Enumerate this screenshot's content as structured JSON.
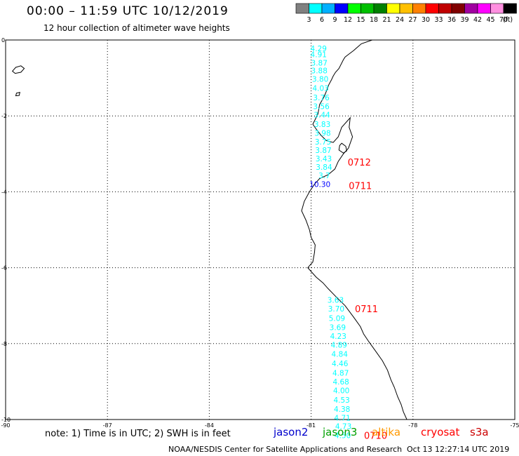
{
  "header": {
    "title": "00:00 – 11:59 UTC 10/12/2019",
    "subtitle": "12 hour collection of altimeter wave heights"
  },
  "legend": {
    "unit": "(ft)",
    "bins": [
      {
        "label": "3",
        "color": "#808080"
      },
      {
        "label": "6",
        "color": "#00ffff"
      },
      {
        "label": "9",
        "color": "#00b0ff"
      },
      {
        "label": "12",
        "color": "#0000ff"
      },
      {
        "label": "15",
        "color": "#00ff00"
      },
      {
        "label": "18",
        "color": "#00c000"
      },
      {
        "label": "21",
        "color": "#008000"
      },
      {
        "label": "24",
        "color": "#ffff00"
      },
      {
        "label": "27",
        "color": "#ffc000"
      },
      {
        "label": "30",
        "color": "#ff8000"
      },
      {
        "label": "33",
        "color": "#ff0000"
      },
      {
        "label": "36",
        "color": "#c00000"
      },
      {
        "label": "39",
        "color": "#800000"
      },
      {
        "label": "42",
        "color": "#a000a0"
      },
      {
        "label": "45",
        "color": "#ff00ff"
      },
      {
        "label": "70",
        "color": "#ff90e0"
      },
      {
        "label": "",
        "color": "#000000"
      }
    ]
  },
  "axes": {
    "lon_ticks": [
      "-90",
      "-87",
      "-84",
      "-81",
      "-78",
      "-75"
    ],
    "lat_ticks": [
      "0",
      "-2",
      "-4",
      "-6",
      "-8",
      "-10"
    ]
  },
  "observations": [
    {
      "lon": -80.78,
      "lat": -0.22,
      "value": "4.29",
      "color": "#00ffff"
    },
    {
      "lon": -80.78,
      "lat": -0.38,
      "value": "4.91",
      "color": "#00ffff"
    },
    {
      "lon": -80.76,
      "lat": -0.6,
      "value": "3.87",
      "color": "#00ffff"
    },
    {
      "lon": -80.76,
      "lat": -0.8,
      "value": "3.88",
      "color": "#00ffff"
    },
    {
      "lon": -80.73,
      "lat": -1.03,
      "value": "3.80",
      "color": "#00ffff"
    },
    {
      "lon": -80.72,
      "lat": -1.27,
      "value": "4.03",
      "color": "#00ffff"
    },
    {
      "lon": -80.7,
      "lat": -1.52,
      "value": "3.76",
      "color": "#00ffff"
    },
    {
      "lon": -80.7,
      "lat": -1.75,
      "value": "3.56",
      "color": "#00ffff"
    },
    {
      "lon": -80.68,
      "lat": -1.97,
      "value": "3.44",
      "color": "#00ffff"
    },
    {
      "lon": -80.67,
      "lat": -2.22,
      "value": "3.83",
      "color": "#00ffff"
    },
    {
      "lon": -80.66,
      "lat": -2.45,
      "value": "3.98",
      "color": "#00ffff"
    },
    {
      "lon": -80.65,
      "lat": -2.68,
      "value": "3.75",
      "color": "#00ffff"
    },
    {
      "lon": -80.64,
      "lat": -2.9,
      "value": "3.87",
      "color": "#00ffff"
    },
    {
      "lon": -80.63,
      "lat": -3.12,
      "value": "3.43",
      "color": "#00ffff"
    },
    {
      "lon": -80.62,
      "lat": -3.35,
      "value": "3.84",
      "color": "#00ffff"
    },
    {
      "lon": -80.61,
      "lat": -3.57,
      "value": "3.7",
      "color": "#00ffff"
    },
    {
      "lon": -80.74,
      "lat": -3.8,
      "value": "10.30",
      "color": "#0000ff"
    },
    {
      "lon": -80.28,
      "lat": -6.85,
      "value": "3.63",
      "color": "#00ffff"
    },
    {
      "lon": -80.26,
      "lat": -7.08,
      "value": "3.70",
      "color": "#00ffff"
    },
    {
      "lon": -80.24,
      "lat": -7.33,
      "value": "5.09",
      "color": "#00ffff"
    },
    {
      "lon": -80.22,
      "lat": -7.57,
      "value": "3.69",
      "color": "#00ffff"
    },
    {
      "lon": -80.2,
      "lat": -7.8,
      "value": "4.23",
      "color": "#00ffff"
    },
    {
      "lon": -80.18,
      "lat": -8.03,
      "value": "4.89",
      "color": "#00ffff"
    },
    {
      "lon": -80.16,
      "lat": -8.27,
      "value": "4.84",
      "color": "#00ffff"
    },
    {
      "lon": -80.15,
      "lat": -8.52,
      "value": "4.46",
      "color": "#00ffff"
    },
    {
      "lon": -80.13,
      "lat": -8.77,
      "value": "4.87",
      "color": "#00ffff"
    },
    {
      "lon": -80.12,
      "lat": -9.0,
      "value": "4.68",
      "color": "#00ffff"
    },
    {
      "lon": -80.11,
      "lat": -9.23,
      "value": "4.00",
      "color": "#00ffff"
    },
    {
      "lon": -80.1,
      "lat": -9.48,
      "value": "4.53",
      "color": "#00ffff"
    },
    {
      "lon": -80.09,
      "lat": -9.72,
      "value": "4.38",
      "color": "#00ffff"
    },
    {
      "lon": -80.08,
      "lat": -9.95,
      "value": "4.71",
      "color": "#00ffff"
    },
    {
      "lon": -80.05,
      "lat": -10.18,
      "value": "4.73",
      "color": "#00ffff"
    },
    {
      "lon": -80.07,
      "lat": -10.42,
      "value": "4.50",
      "color": "#00ffff"
    }
  ],
  "time_labels": [
    {
      "lon": -79.58,
      "lat": -3.22,
      "text": "0712"
    },
    {
      "lon": -79.55,
      "lat": -3.84,
      "text": "0711"
    },
    {
      "lon": -79.37,
      "lat": -7.08,
      "text": "0711"
    },
    {
      "lon": -79.1,
      "lat": -10.42,
      "text": "0710"
    }
  ],
  "footer": {
    "note": "note: 1) Time is in UTC; 2) SWH is in feet",
    "missions": [
      {
        "label": "jason2",
        "color": "#0000cc"
      },
      {
        "label": "jason3",
        "color": "#00a000"
      },
      {
        "label": "altika",
        "color": "#ff9900"
      },
      {
        "label": "cryosat",
        "color": "#ff0000"
      },
      {
        "label": "s3a",
        "color": "#cc0000"
      }
    ],
    "credit": "NOAA/NESDIS Center for Satellite Applications and Research",
    "timestamp": "Oct 13 12:27:14 UTC 2019"
  }
}
